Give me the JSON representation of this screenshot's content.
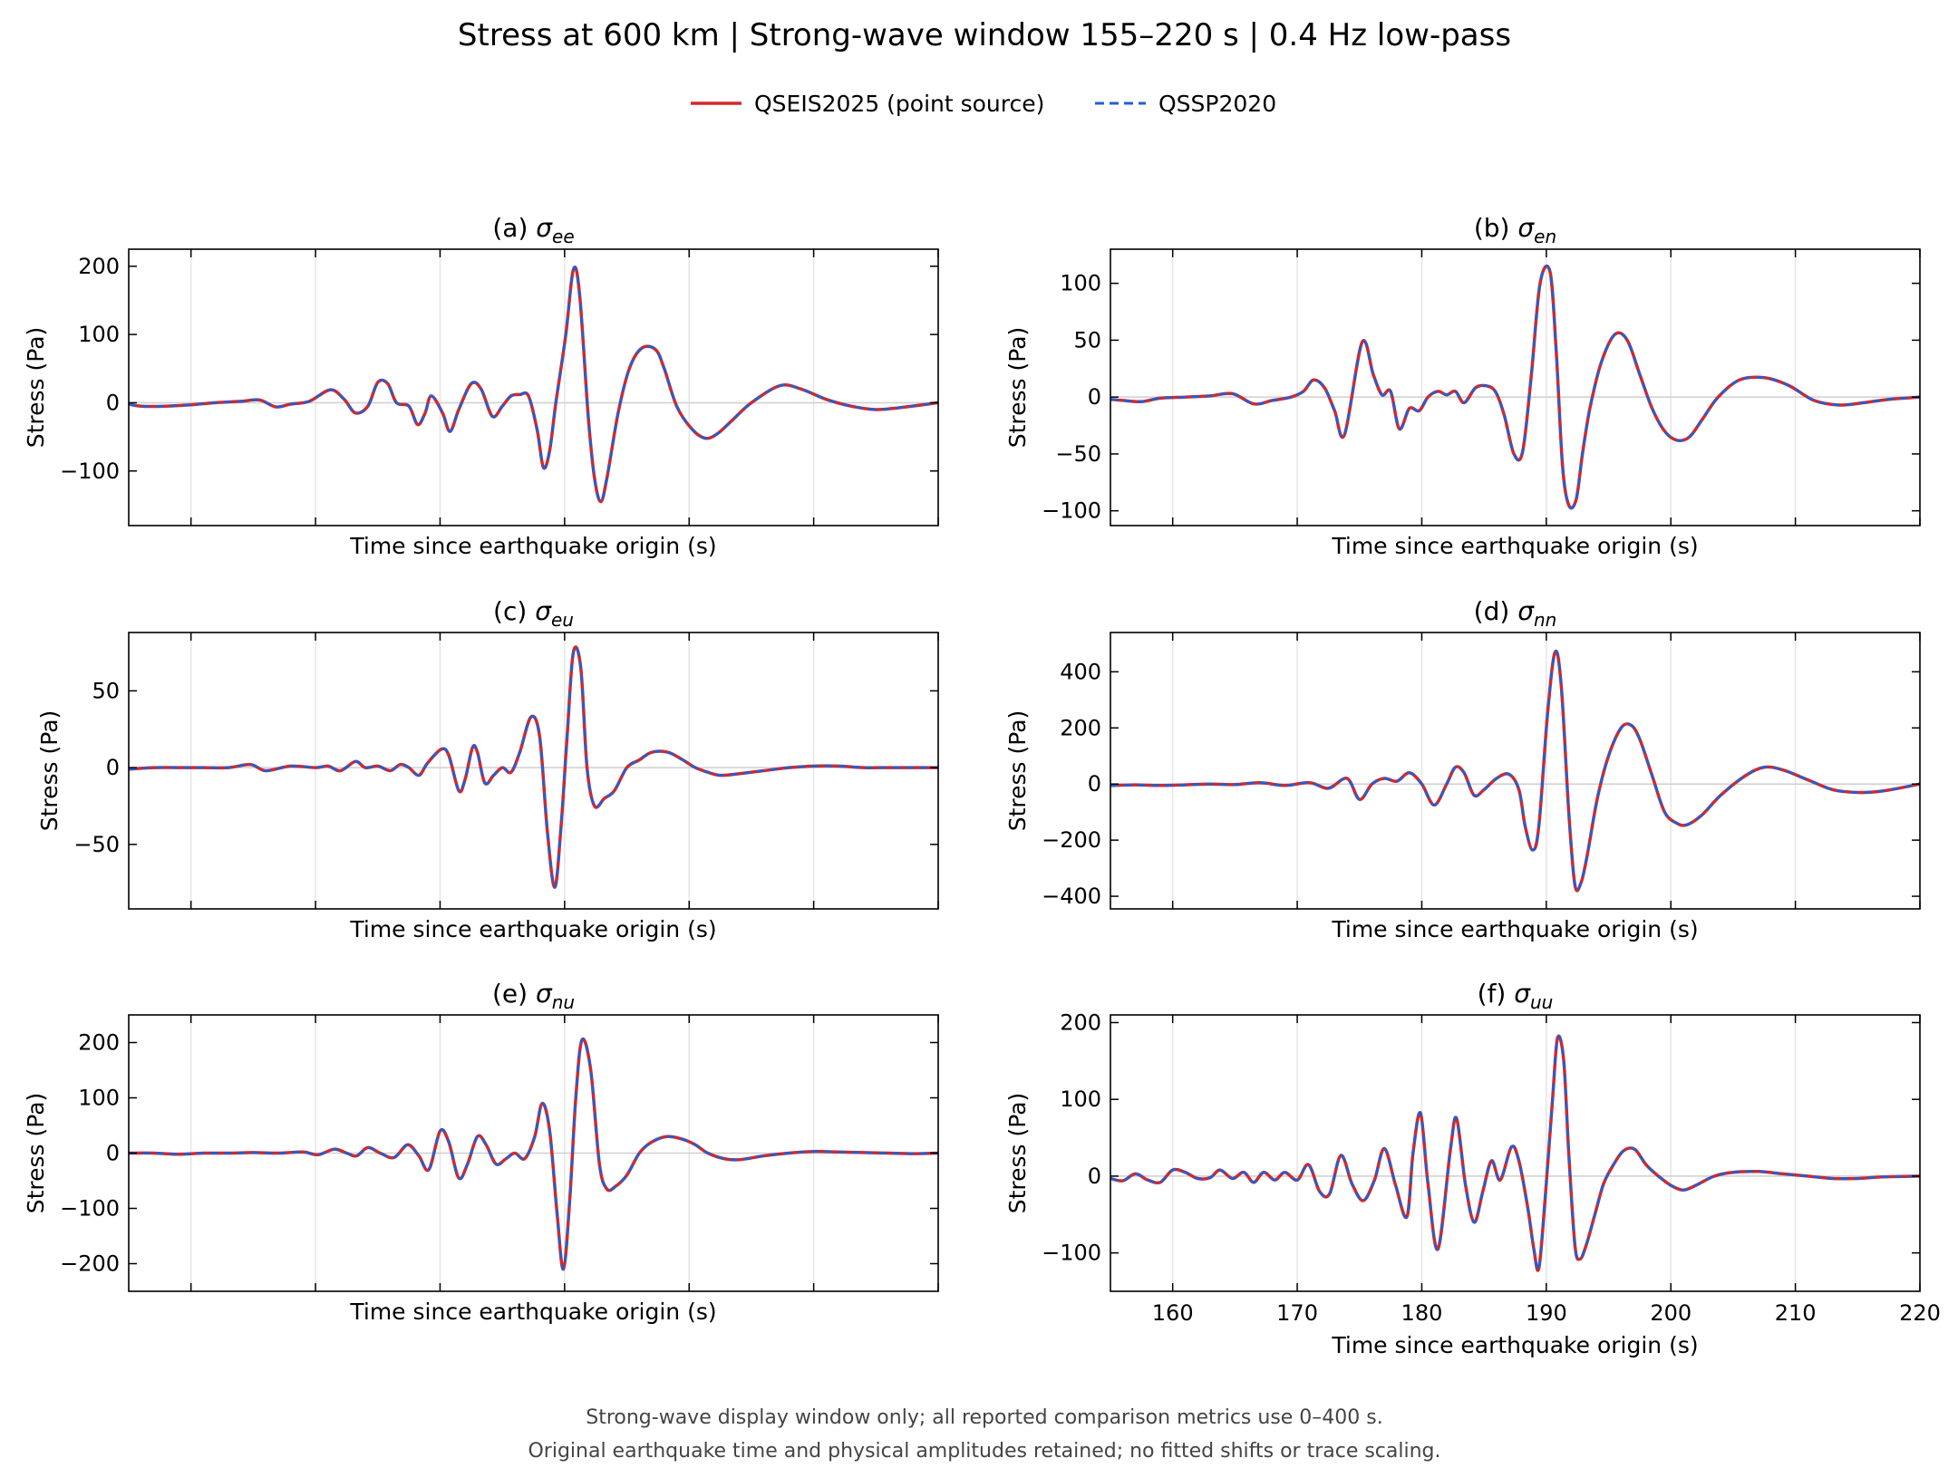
{
  "figure": {
    "title": "Stress at 600 km | Strong-wave window 155–220 s | 0.4 Hz low-pass",
    "footnote_1": "Strong-wave display window only; all reported comparison metrics use 0–400 s.",
    "footnote_2": "Original earthquake time and physical amplitudes retained; no fitted shifts or trace scaling.",
    "legend": [
      {
        "label": "QSEIS2025 (point source)",
        "color": "#d62728",
        "style": "solid"
      },
      {
        "label": "QSSP2020",
        "color": "#1f5fd6",
        "style": "dashed"
      }
    ]
  },
  "chart_data": [
    {
      "type": "line",
      "panel": "a",
      "title_prefix": "(a) ",
      "symbol": "σ",
      "subscript": "ee",
      "xlabel": "Time since earthquake origin (s)",
      "ylabel": "Stress (Pa)",
      "xlim": [
        155,
        220
      ],
      "ylim": [
        -180,
        225
      ],
      "yticks": [
        -100,
        0,
        100,
        200
      ],
      "xticks": [
        160,
        170,
        180,
        190,
        200,
        210,
        220
      ],
      "show_xticklabels": false,
      "series_names": [
        "QSEIS2025 (point source)",
        "QSSP2020"
      ],
      "x": [
        155,
        156,
        158,
        160,
        162,
        164,
        165.5,
        166.8,
        168,
        169.5,
        171.2,
        172.3,
        173.2,
        174.2,
        175,
        175.8,
        176.5,
        177.5,
        178.2,
        178.8,
        179.3,
        180.2,
        180.8,
        181.5,
        182.5,
        183.3,
        184.2,
        185,
        185.7,
        186.4,
        187.1,
        187.8,
        188.3,
        188.8,
        189.3,
        190.1,
        190.7,
        191.2,
        191.9,
        192.4,
        192.9,
        193.4,
        194.3,
        195.2,
        196.2,
        197.3,
        198,
        199,
        200.2,
        201.3,
        202.3,
        203.5,
        205,
        207.3,
        209,
        211,
        213,
        215,
        217,
        220
      ],
      "values": [
        -2,
        -5,
        -5,
        -3,
        0,
        2,
        4,
        -6,
        -2,
        2,
        19,
        5,
        -15,
        -5,
        30,
        28,
        0,
        -5,
        -32,
        -15,
        10,
        -15,
        -42,
        -10,
        28,
        20,
        -20,
        -5,
        10,
        12,
        10,
        -40,
        -95,
        -70,
        0,
        100,
        195,
        160,
        -20,
        -110,
        -145,
        -110,
        -15,
        50,
        80,
        78,
        50,
        -5,
        -38,
        -52,
        -45,
        -25,
        0,
        25,
        20,
        5,
        -5,
        -10,
        -7,
        0
      ]
    },
    {
      "type": "line",
      "panel": "b",
      "title_prefix": "(b) ",
      "symbol": "σ",
      "subscript": "en",
      "xlabel": "Time since earthquake origin (s)",
      "ylabel": "Stress (Pa)",
      "xlim": [
        155,
        220
      ],
      "ylim": [
        -113,
        130
      ],
      "yticks": [
        -100,
        -50,
        0,
        50,
        100
      ],
      "xticks": [
        160,
        170,
        180,
        190,
        200,
        210,
        220
      ],
      "show_xticklabels": false,
      "series_names": [
        "QSEIS2025 (point source)",
        "QSSP2020"
      ],
      "x": [
        155,
        156,
        157.5,
        159,
        161,
        163,
        164.8,
        166.5,
        168,
        169.5,
        170.5,
        171.3,
        172.2,
        173,
        173.8,
        175.2,
        176.1,
        176.8,
        177.5,
        178.2,
        179,
        179.8,
        180.5,
        181.3,
        182,
        182.7,
        183.4,
        184.3,
        185.1,
        185.9,
        186.6,
        187.4,
        188.1,
        188.8,
        189.5,
        190.3,
        190.8,
        191.3,
        191.8,
        192.4,
        192.9,
        193.5,
        194.4,
        195.5,
        196.5,
        197.5,
        198.5,
        199.5,
        200.5,
        201.5,
        202.5,
        203.8,
        205.5,
        207.5,
        209.5,
        211.5,
        213.5,
        215.5,
        217.5,
        220
      ],
      "values": [
        -2,
        -3,
        -4,
        -1,
        0,
        1,
        3,
        -6,
        -3,
        0,
        5,
        15,
        8,
        -12,
        -33,
        48,
        20,
        2,
        5,
        -28,
        -10,
        -12,
        0,
        5,
        2,
        5,
        -5,
        8,
        10,
        5,
        -15,
        -50,
        -48,
        20,
        100,
        110,
        40,
        -60,
        -95,
        -90,
        -50,
        -10,
        30,
        55,
        50,
        20,
        -10,
        -30,
        -38,
        -35,
        -20,
        0,
        15,
        17,
        10,
        -3,
        -7,
        -5,
        -2,
        0
      ]
    },
    {
      "type": "line",
      "panel": "c",
      "title_prefix": "(c) ",
      "symbol": "σ",
      "subscript": "eu",
      "xlabel": "Time since earthquake origin (s)",
      "ylabel": "Stress (Pa)",
      "xlim": [
        155,
        220
      ],
      "ylim": [
        -92,
        88
      ],
      "yticks": [
        -50,
        0,
        50
      ],
      "xticks": [
        160,
        170,
        180,
        190,
        200,
        210,
        220
      ],
      "show_xticklabels": false,
      "series_names": [
        "QSEIS2025 (point source)",
        "QSSP2020"
      ],
      "x": [
        155,
        157,
        159,
        161,
        163,
        164.8,
        166,
        168,
        170,
        171,
        172,
        173.2,
        174,
        175,
        176,
        176.8,
        177.5,
        178.3,
        179,
        180.1,
        180.7,
        181.5,
        182,
        182.6,
        183,
        183.6,
        184.3,
        185,
        185.7,
        186.4,
        187.3,
        188,
        188.6,
        189.2,
        189.7,
        190.2,
        190.7,
        191.3,
        191.8,
        192.4,
        193.2,
        194,
        195,
        196,
        197,
        198.3,
        199.5,
        200.5,
        201.5,
        202.5,
        204,
        206,
        208,
        210,
        212,
        214,
        216,
        218,
        220
      ],
      "values": [
        -1,
        0,
        0,
        0,
        0,
        2,
        -2,
        1,
        0,
        1,
        -2,
        4,
        0,
        1,
        -2,
        2,
        0,
        -5,
        3,
        12,
        8,
        -15,
        -8,
        13,
        10,
        -10,
        -5,
        0,
        -3,
        10,
        33,
        20,
        -40,
        -78,
        -40,
        20,
        75,
        65,
        0,
        -25,
        -20,
        -15,
        0,
        5,
        10,
        10,
        5,
        0,
        -3,
        -5,
        -4,
        -2,
        0,
        1,
        1,
        0,
        0,
        0,
        0
      ]
    },
    {
      "type": "line",
      "panel": "d",
      "title_prefix": "(d) ",
      "symbol": "σ",
      "subscript": "nn",
      "xlabel": "Time since earthquake origin (s)",
      "ylabel": "Stress (Pa)",
      "xlim": [
        155,
        220
      ],
      "ylim": [
        -445,
        540
      ],
      "yticks": [
        -400,
        -200,
        0,
        200,
        400
      ],
      "xticks": [
        160,
        170,
        180,
        190,
        200,
        210,
        220
      ],
      "show_xticklabels": false,
      "series_names": [
        "QSEIS2025 (point source)",
        "QSSP2020"
      ],
      "x": [
        155,
        157,
        159,
        161,
        163,
        165,
        167,
        169,
        171,
        172.5,
        174,
        175,
        176,
        177,
        178,
        179,
        180,
        181,
        182,
        182.7,
        183.4,
        184.2,
        185,
        186,
        187,
        187.8,
        188.3,
        188.9,
        189.4,
        190.1,
        190.7,
        191.2,
        191.8,
        192.3,
        192.8,
        193.3,
        194.1,
        195,
        196,
        196.8,
        197.5,
        198.5,
        199.5,
        200.5,
        201.3,
        202.5,
        204,
        206,
        207.5,
        209,
        211,
        213,
        215,
        217,
        220
      ],
      "values": [
        -5,
        -3,
        -5,
        -3,
        0,
        -2,
        5,
        -5,
        5,
        -15,
        20,
        -55,
        0,
        20,
        10,
        40,
        0,
        -75,
        0,
        60,
        40,
        -40,
        -20,
        20,
        35,
        -20,
        -150,
        -235,
        -150,
        250,
        470,
        350,
        -100,
        -360,
        -350,
        -250,
        -50,
        100,
        200,
        210,
        160,
        30,
        -100,
        -140,
        -145,
        -110,
        -40,
        30,
        60,
        50,
        15,
        -20,
        -30,
        -25,
        0
      ]
    },
    {
      "type": "line",
      "panel": "e",
      "title_prefix": "(e) ",
      "symbol": "σ",
      "subscript": "nu",
      "xlabel": "Time since earthquake origin (s)",
      "ylabel": "Stress (Pa)",
      "xlim": [
        155,
        220
      ],
      "ylim": [
        -250,
        250
      ],
      "yticks": [
        -200,
        -100,
        0,
        100,
        200
      ],
      "xticks": [
        160,
        170,
        180,
        190,
        200,
        210,
        220
      ],
      "show_xticklabels": false,
      "series_names": [
        "QSEIS2025 (point source)",
        "QSSP2020"
      ],
      "x": [
        155,
        157,
        159,
        161,
        163,
        165,
        167,
        169,
        170.2,
        171.5,
        172.5,
        173.3,
        174.2,
        175.2,
        176.3,
        177.4,
        178.3,
        179.1,
        180,
        180.7,
        181.5,
        182.2,
        183,
        183.7,
        184.5,
        185.3,
        186,
        186.8,
        187.6,
        188.2,
        188.8,
        189.4,
        189.9,
        190.4,
        190.9,
        191.4,
        192.1,
        192.8,
        193.4,
        194.1,
        195,
        196,
        197,
        198.2,
        199.5,
        200.5,
        201.5,
        202.8,
        204,
        206,
        208,
        210,
        212,
        214,
        216,
        218,
        220
      ],
      "values": [
        0,
        0,
        -2,
        0,
        0,
        1,
        0,
        2,
        -3,
        7,
        0,
        -5,
        10,
        0,
        -8,
        15,
        -5,
        -30,
        40,
        20,
        -45,
        -20,
        30,
        15,
        -20,
        -10,
        0,
        -10,
        30,
        90,
        40,
        -110,
        -210,
        -90,
        100,
        205,
        150,
        -20,
        -65,
        -60,
        -40,
        0,
        20,
        30,
        25,
        15,
        0,
        -10,
        -12,
        -5,
        0,
        3,
        2,
        1,
        0,
        -1,
        0
      ]
    },
    {
      "type": "line",
      "panel": "f",
      "title_prefix": "(f) ",
      "symbol": "σ",
      "subscript": "uu",
      "xlabel": "Time since earthquake origin (s)",
      "ylabel": "Stress (Pa)",
      "xlim": [
        155,
        220
      ],
      "ylim": [
        -150,
        210
      ],
      "yticks": [
        -100,
        0,
        100,
        200
      ],
      "xticks": [
        160,
        170,
        180,
        190,
        200,
        210,
        220
      ],
      "show_xticklabels": true,
      "series_names": [
        "QSEIS2025 (point source)",
        "QSSP2020"
      ],
      "x": [
        155,
        156,
        157,
        158,
        159,
        160,
        161,
        162,
        163,
        163.8,
        164.8,
        165.7,
        166.5,
        167.3,
        168.2,
        169,
        170,
        170.9,
        171.8,
        172.6,
        173.5,
        174.4,
        175.3,
        176.2,
        177,
        177.9,
        178.8,
        179.3,
        179.9,
        180.5,
        181.3,
        182.3,
        182.8,
        183.5,
        184.2,
        184.9,
        185.6,
        186.3,
        187.2,
        187.8,
        188.5,
        189,
        189.4,
        189.9,
        190.5,
        190.9,
        191.4,
        191.8,
        192.3,
        192.7,
        193.2,
        193.9,
        194.6,
        195.4,
        196.2,
        197.1,
        198,
        199,
        200,
        201,
        202,
        203.5,
        205,
        207,
        209,
        211,
        213,
        215,
        217,
        220
      ],
      "values": [
        -3,
        -6,
        3,
        -5,
        -8,
        8,
        5,
        -3,
        -2,
        8,
        -3,
        5,
        -8,
        5,
        -5,
        5,
        -5,
        15,
        -20,
        -23,
        27,
        -10,
        -32,
        -5,
        36,
        -12,
        -53,
        30,
        82,
        -10,
        -95,
        35,
        75,
        -10,
        -60,
        -20,
        20,
        -5,
        38,
        20,
        -40,
        -95,
        -120,
        -30,
        100,
        180,
        150,
        30,
        -90,
        -108,
        -90,
        -50,
        -10,
        15,
        33,
        35,
        15,
        0,
        -12,
        -18,
        -12,
        0,
        5,
        6,
        3,
        0,
        -3,
        -3,
        -1,
        0
      ]
    }
  ]
}
